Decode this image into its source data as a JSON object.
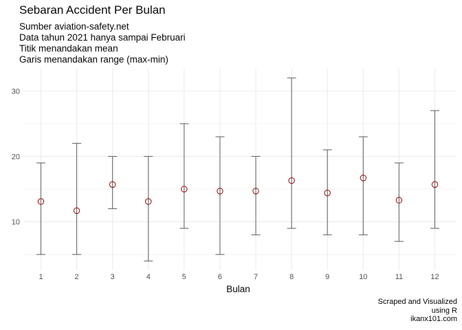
{
  "chart_data": {
    "type": "errorbar",
    "title": "Sebaran Accident Per Bulan",
    "subtitle": [
      "Sumber aviation-safety.net",
      "Data tahun 2021 hanya sampai Februari",
      "Titik menandakan mean",
      "Garis menandakan range (max-min)"
    ],
    "caption": [
      "Scraped and Visualized",
      "using R",
      "ikanx101.com"
    ],
    "xlabel": "Bulan",
    "ylabel": "",
    "categories": [
      "1",
      "2",
      "3",
      "4",
      "5",
      "6",
      "7",
      "8",
      "9",
      "10",
      "11",
      "12"
    ],
    "mean": [
      13.1,
      11.7,
      15.7,
      13.1,
      15.0,
      14.7,
      14.7,
      16.3,
      14.4,
      16.7,
      13.3,
      15.7
    ],
    "min": [
      5,
      5,
      12,
      4,
      9,
      5,
      8,
      9,
      8,
      8,
      7,
      9
    ],
    "max": [
      19,
      22,
      20,
      20,
      25,
      23,
      20,
      32,
      21,
      23,
      19,
      27
    ],
    "yticks": [
      10,
      20,
      30
    ],
    "ylim": [
      2.6,
      33.4
    ],
    "grid": true,
    "colors": {
      "point": "#8b0000",
      "range": "#666666",
      "grid": "#ebebeb"
    }
  }
}
